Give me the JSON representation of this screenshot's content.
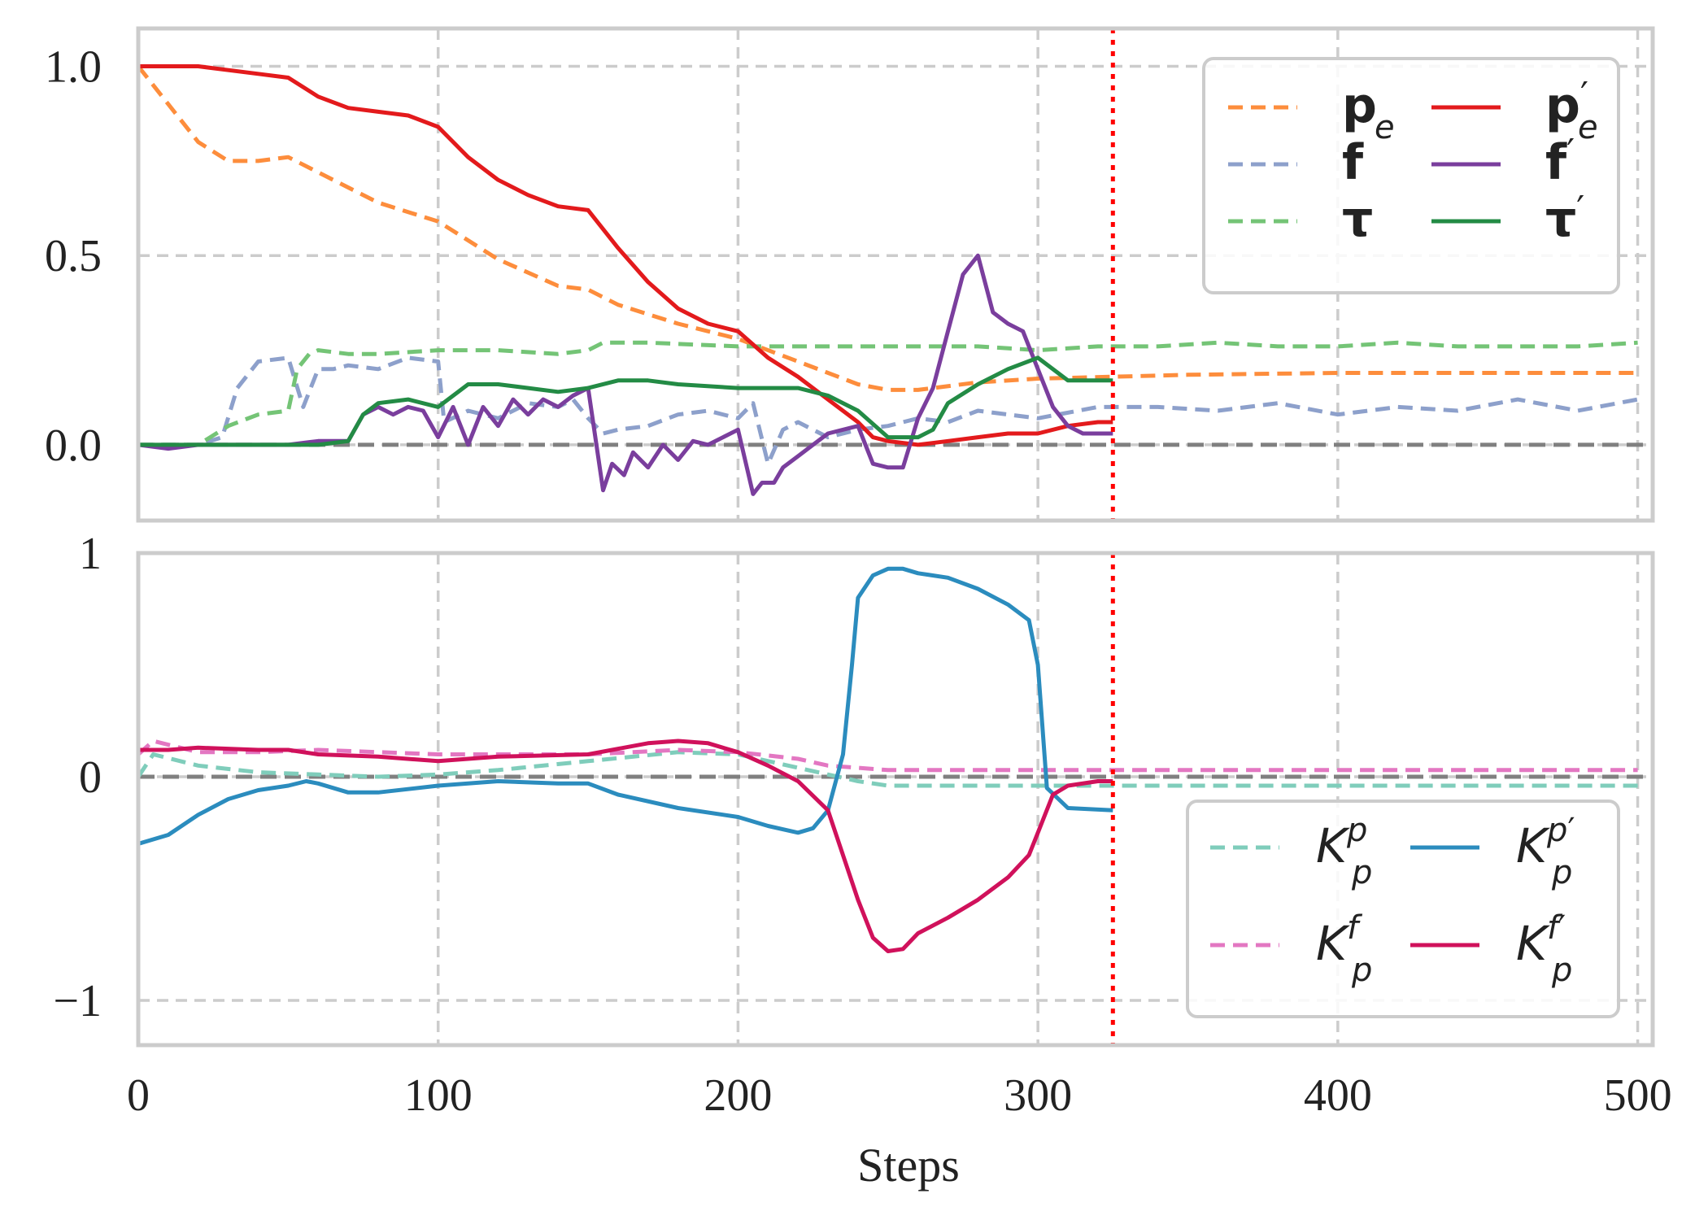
{
  "chart_data": [
    {
      "type": "line",
      "panel": "top",
      "xlim": [
        0,
        505
      ],
      "ylim": [
        -0.2,
        1.1
      ],
      "xticks": [
        0,
        100,
        200,
        300,
        400,
        500
      ],
      "yticks": [
        0.0,
        0.5,
        1.0
      ],
      "ytick_labels": [
        "0.0",
        "0.5",
        "1.0"
      ],
      "grid": true,
      "reference_line": {
        "y": 0,
        "color": "#808080",
        "style": "dashed"
      },
      "vertical_marker": {
        "x": 325,
        "color": "#ff0000",
        "style": "dotted"
      },
      "legend_position": "top-right",
      "series": [
        {
          "name": "p_e",
          "label_main": "p",
          "label_sub": "e",
          "label_prime": "",
          "color": "#fd8d3c",
          "style": "dashed",
          "x": [
            0,
            10,
            20,
            30,
            40,
            50,
            60,
            70,
            80,
            100,
            120,
            140,
            150,
            160,
            180,
            200,
            220,
            240,
            250,
            260,
            280,
            300,
            325,
            350,
            400,
            450,
            500
          ],
          "y": [
            1.0,
            0.9,
            0.8,
            0.75,
            0.75,
            0.76,
            0.72,
            0.68,
            0.64,
            0.59,
            0.49,
            0.42,
            0.41,
            0.37,
            0.32,
            0.28,
            0.22,
            0.16,
            0.145,
            0.145,
            0.165,
            0.175,
            0.18,
            0.185,
            0.19,
            0.19,
            0.19
          ]
        },
        {
          "name": "f",
          "label_main": "f",
          "label_sub": "",
          "label_prime": "",
          "color": "#8da0cb",
          "style": "dashed",
          "x": [
            0,
            20,
            28,
            33,
            40,
            50,
            55,
            60,
            65,
            70,
            80,
            90,
            100,
            102,
            110,
            120,
            130,
            140,
            145,
            150,
            155,
            160,
            170,
            180,
            190,
            200,
            205,
            210,
            215,
            220,
            230,
            240,
            250,
            260,
            270,
            280,
            290,
            300,
            320,
            340,
            360,
            380,
            400,
            420,
            440,
            460,
            480,
            500
          ],
          "y": [
            0.0,
            0.0,
            0.02,
            0.15,
            0.22,
            0.23,
            0.1,
            0.2,
            0.2,
            0.21,
            0.2,
            0.23,
            0.22,
            0.06,
            0.09,
            0.07,
            0.11,
            0.1,
            0.12,
            0.07,
            0.03,
            0.04,
            0.05,
            0.08,
            0.09,
            0.07,
            0.11,
            -0.05,
            0.04,
            0.06,
            0.02,
            0.04,
            0.05,
            0.07,
            0.06,
            0.09,
            0.08,
            0.07,
            0.1,
            0.1,
            0.09,
            0.11,
            0.08,
            0.1,
            0.09,
            0.12,
            0.09,
            0.12
          ]
        },
        {
          "name": "tau",
          "label_main": "τ",
          "label_sub": "",
          "label_prime": "",
          "color": "#74c476",
          "style": "dashed",
          "x": [
            0,
            20,
            30,
            40,
            50,
            53,
            57,
            60,
            70,
            80,
            100,
            120,
            140,
            150,
            155,
            170,
            200,
            220,
            240,
            260,
            280,
            300,
            320,
            340,
            360,
            380,
            400,
            420,
            440,
            460,
            480,
            500
          ],
          "y": [
            0.0,
            0.0,
            0.05,
            0.08,
            0.09,
            0.2,
            0.24,
            0.25,
            0.24,
            0.24,
            0.25,
            0.25,
            0.24,
            0.25,
            0.27,
            0.27,
            0.26,
            0.26,
            0.26,
            0.26,
            0.26,
            0.25,
            0.26,
            0.26,
            0.27,
            0.26,
            0.26,
            0.27,
            0.26,
            0.26,
            0.26,
            0.27
          ]
        },
        {
          "name": "p_e_prime",
          "label_main": "p",
          "label_sub": "e",
          "label_prime": "′",
          "color": "#e31a1c",
          "style": "solid",
          "x": [
            0,
            10,
            20,
            30,
            40,
            50,
            60,
            70,
            80,
            90,
            100,
            110,
            120,
            130,
            140,
            150,
            160,
            170,
            180,
            190,
            200,
            210,
            220,
            230,
            240,
            245,
            250,
            260,
            270,
            280,
            290,
            300,
            310,
            320,
            325
          ],
          "y": [
            1.0,
            1.0,
            1.0,
            0.99,
            0.98,
            0.97,
            0.92,
            0.89,
            0.88,
            0.87,
            0.84,
            0.76,
            0.7,
            0.66,
            0.63,
            0.62,
            0.52,
            0.43,
            0.36,
            0.32,
            0.3,
            0.23,
            0.18,
            0.12,
            0.06,
            0.02,
            0.01,
            0.0,
            0.01,
            0.02,
            0.03,
            0.03,
            0.05,
            0.06,
            0.06
          ]
        },
        {
          "name": "f_prime",
          "label_main": "f",
          "label_sub": "",
          "label_prime": "′",
          "color": "#7a3e9d",
          "style": "solid",
          "x": [
            0,
            10,
            20,
            30,
            40,
            50,
            60,
            70,
            75,
            80,
            85,
            90,
            95,
            100,
            105,
            110,
            115,
            120,
            125,
            130,
            135,
            140,
            145,
            150,
            155,
            158,
            162,
            165,
            170,
            175,
            180,
            185,
            190,
            195,
            200,
            205,
            208,
            212,
            215,
            220,
            225,
            230,
            240,
            245,
            250,
            255,
            260,
            265,
            270,
            275,
            280,
            285,
            290,
            295,
            300,
            305,
            310,
            315,
            320,
            325
          ],
          "y": [
            0.0,
            -0.01,
            0.0,
            0.0,
            0.0,
            0.0,
            0.01,
            0.01,
            0.08,
            0.1,
            0.08,
            0.1,
            0.09,
            0.02,
            0.1,
            0.0,
            0.1,
            0.05,
            0.12,
            0.08,
            0.12,
            0.1,
            0.13,
            0.15,
            -0.12,
            -0.05,
            -0.08,
            -0.02,
            -0.06,
            0.0,
            -0.04,
            0.01,
            0.0,
            0.02,
            0.04,
            -0.13,
            -0.1,
            -0.1,
            -0.06,
            -0.03,
            0.0,
            0.03,
            0.05,
            -0.05,
            -0.06,
            -0.06,
            0.07,
            0.15,
            0.3,
            0.45,
            0.5,
            0.35,
            0.32,
            0.3,
            0.2,
            0.1,
            0.05,
            0.03,
            0.03,
            0.03
          ]
        },
        {
          "name": "tau_prime",
          "label_main": "τ",
          "label_sub": "",
          "label_prime": "′",
          "color": "#238b45",
          "style": "solid",
          "x": [
            0,
            60,
            70,
            75,
            80,
            90,
            100,
            110,
            120,
            130,
            140,
            150,
            160,
            170,
            180,
            200,
            220,
            230,
            240,
            250,
            260,
            265,
            270,
            280,
            290,
            300,
            310,
            325
          ],
          "y": [
            0.0,
            0.0,
            0.01,
            0.08,
            0.11,
            0.12,
            0.1,
            0.16,
            0.16,
            0.15,
            0.14,
            0.15,
            0.17,
            0.17,
            0.16,
            0.15,
            0.15,
            0.13,
            0.09,
            0.02,
            0.02,
            0.04,
            0.11,
            0.16,
            0.2,
            0.23,
            0.17,
            0.17
          ]
        }
      ]
    },
    {
      "type": "line",
      "panel": "bottom",
      "xlim": [
        0,
        505
      ],
      "ylim": [
        -1.2,
        1.0
      ],
      "xticks": [
        0,
        100,
        200,
        300,
        400,
        500
      ],
      "xtick_labels": [
        "0",
        "100",
        "200",
        "300",
        "400",
        "500"
      ],
      "yticks": [
        -1,
        0,
        1
      ],
      "ytick_labels": [
        "−1",
        "0",
        "1"
      ],
      "xlabel": "Steps",
      "grid": true,
      "reference_line": {
        "y": 0,
        "color": "#808080",
        "style": "dashed"
      },
      "vertical_marker": {
        "x": 325,
        "color": "#ff0000",
        "style": "dotted"
      },
      "legend_position": "bottom-right",
      "series": [
        {
          "name": "Kp^p",
          "label_main": "K",
          "label_sub": "p",
          "label_sup": "p",
          "label_prime": "",
          "color": "#7fcdbb",
          "style": "dashed",
          "x": [
            0,
            5,
            20,
            40,
            60,
            80,
            100,
            120,
            150,
            180,
            200,
            220,
            240,
            250,
            260,
            300,
            325,
            400,
            500
          ],
          "y": [
            0.0,
            0.1,
            0.05,
            0.02,
            0.01,
            0.0,
            0.01,
            0.03,
            0.07,
            0.11,
            0.1,
            0.04,
            -0.02,
            -0.04,
            -0.04,
            -0.04,
            -0.04,
            -0.04,
            -0.04
          ]
        },
        {
          "name": "Kp^f",
          "label_main": "K",
          "label_sub": "p",
          "label_sup": "f",
          "label_prime": "",
          "color": "#e377c2",
          "style": "dashed",
          "x": [
            0,
            5,
            20,
            40,
            60,
            100,
            150,
            180,
            200,
            220,
            230,
            250,
            300,
            325,
            400,
            500
          ],
          "y": [
            0.1,
            0.16,
            0.11,
            0.11,
            0.12,
            0.1,
            0.1,
            0.12,
            0.11,
            0.08,
            0.05,
            0.03,
            0.03,
            0.03,
            0.03,
            0.03
          ]
        },
        {
          "name": "Kp^p_prime",
          "label_main": "K",
          "label_sub": "p",
          "label_sup": "p",
          "label_prime": "′",
          "color": "#2b8cbe",
          "style": "solid",
          "x": [
            0,
            10,
            20,
            30,
            40,
            50,
            56,
            60,
            70,
            80,
            100,
            120,
            140,
            150,
            160,
            180,
            200,
            210,
            220,
            225,
            230,
            235,
            238,
            240,
            245,
            250,
            255,
            260,
            270,
            280,
            290,
            297,
            300,
            303,
            310,
            325
          ],
          "y": [
            -0.3,
            -0.26,
            -0.17,
            -0.1,
            -0.06,
            -0.04,
            -0.02,
            -0.03,
            -0.07,
            -0.07,
            -0.04,
            -0.02,
            -0.03,
            -0.03,
            -0.08,
            -0.14,
            -0.18,
            -0.22,
            -0.25,
            -0.23,
            -0.15,
            0.1,
            0.5,
            0.8,
            0.9,
            0.93,
            0.93,
            0.91,
            0.89,
            0.84,
            0.77,
            0.7,
            0.5,
            -0.05,
            -0.14,
            -0.15
          ]
        },
        {
          "name": "Kp^f_prime",
          "label_main": "K",
          "label_sub": "p",
          "label_sup": "f",
          "label_prime": "′",
          "color": "#d0115b",
          "style": "solid",
          "x": [
            0,
            10,
            20,
            40,
            50,
            60,
            80,
            100,
            120,
            150,
            170,
            180,
            190,
            200,
            210,
            220,
            230,
            240,
            245,
            250,
            255,
            260,
            270,
            280,
            290,
            297,
            300,
            305,
            310,
            320,
            325
          ],
          "y": [
            0.12,
            0.12,
            0.13,
            0.12,
            0.12,
            0.1,
            0.09,
            0.07,
            0.09,
            0.1,
            0.15,
            0.16,
            0.15,
            0.11,
            0.05,
            -0.02,
            -0.15,
            -0.55,
            -0.72,
            -0.78,
            -0.77,
            -0.7,
            -0.63,
            -0.55,
            -0.45,
            -0.35,
            -0.25,
            -0.08,
            -0.04,
            -0.02,
            -0.02
          ]
        }
      ]
    }
  ]
}
